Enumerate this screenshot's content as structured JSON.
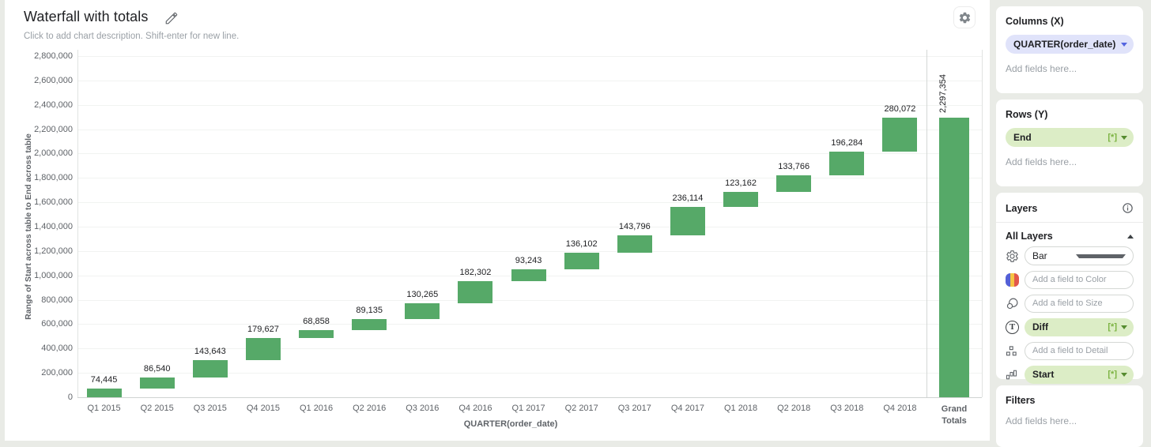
{
  "header": {
    "title": "Waterfall with totals",
    "description_placeholder": "Click to add chart description. Shift-enter for new line."
  },
  "chart_data": {
    "type": "bar",
    "subtype": "waterfall",
    "title": "Waterfall with totals",
    "xlabel": "QUARTER(order_date)",
    "ylabel": "Range of Start across table to End across table",
    "ylim": [
      0,
      2800000
    ],
    "ytick_step": 200000,
    "ytick_labels": [
      "0",
      "200,000",
      "400,000",
      "600,000",
      "800,000",
      "1,000,000",
      "1,200,000",
      "1,400,000",
      "1,600,000",
      "1,800,000",
      "2,000,000",
      "2,200,000",
      "2,400,000",
      "2,600,000",
      "2,800,000"
    ],
    "grid": true,
    "legend_position": "none",
    "bar_color": "#56a968",
    "categories": [
      "Q1 2015",
      "Q2 2015",
      "Q3 2015",
      "Q4 2015",
      "Q1 2016",
      "Q2 2016",
      "Q3 2016",
      "Q4 2016",
      "Q1 2017",
      "Q2 2017",
      "Q3 2017",
      "Q4 2017",
      "Q1 2018",
      "Q2 2018",
      "Q3 2018",
      "Q4 2018"
    ],
    "values": [
      74445,
      86540,
      143643,
      179627,
      68858,
      89135,
      130265,
      182302,
      93243,
      136102,
      143796,
      236114,
      123162,
      133766,
      196284,
      280072
    ],
    "value_labels": [
      "74,445",
      "86,540",
      "143,643",
      "179,627",
      "68,858",
      "89,135",
      "130,265",
      "182,302",
      "93,243",
      "136,102",
      "143,796",
      "236,114",
      "123,162",
      "133,766",
      "196,284",
      "280,072"
    ],
    "total": {
      "label": "Grand Totals",
      "value": 2297354,
      "value_label": "2,297,354"
    }
  },
  "panel": {
    "columns": {
      "title": "Columns (X)",
      "pill": "QUARTER(order_date)",
      "placeholder": "Add fields here..."
    },
    "rows": {
      "title": "Rows (Y)",
      "pill": "End",
      "badge": "[*]",
      "placeholder": "Add fields here..."
    },
    "layers": {
      "title": "Layers",
      "all_layers_label": "All Layers",
      "mark_type": "Bar",
      "fields": [
        {
          "placeholder": "Add a field to Color"
        },
        {
          "placeholder": "Add a field to Size"
        },
        {
          "pill": "Diff",
          "badge": "[*]"
        },
        {
          "placeholder": "Add a field to Detail"
        },
        {
          "pill": "Start",
          "badge": "[*]"
        }
      ]
    },
    "filters": {
      "title": "Filters",
      "placeholder": "Add fields here..."
    }
  }
}
